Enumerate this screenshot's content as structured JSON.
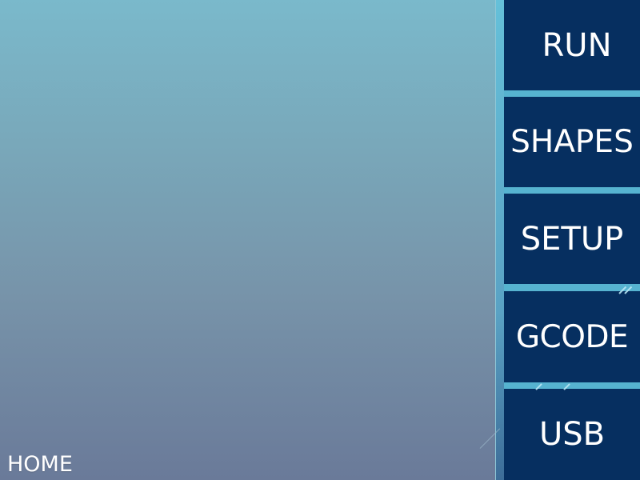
{
  "screen": {
    "title": "HOME"
  },
  "nav": {
    "items": [
      {
        "label": "RUN"
      },
      {
        "label": "SHAPES"
      },
      {
        "label": "SETUP"
      },
      {
        "label": "GCODE"
      },
      {
        "label": "USB"
      }
    ]
  },
  "colors": {
    "button_background": "#062f60",
    "accent": "#56b3d0",
    "text": "#ffffff"
  }
}
